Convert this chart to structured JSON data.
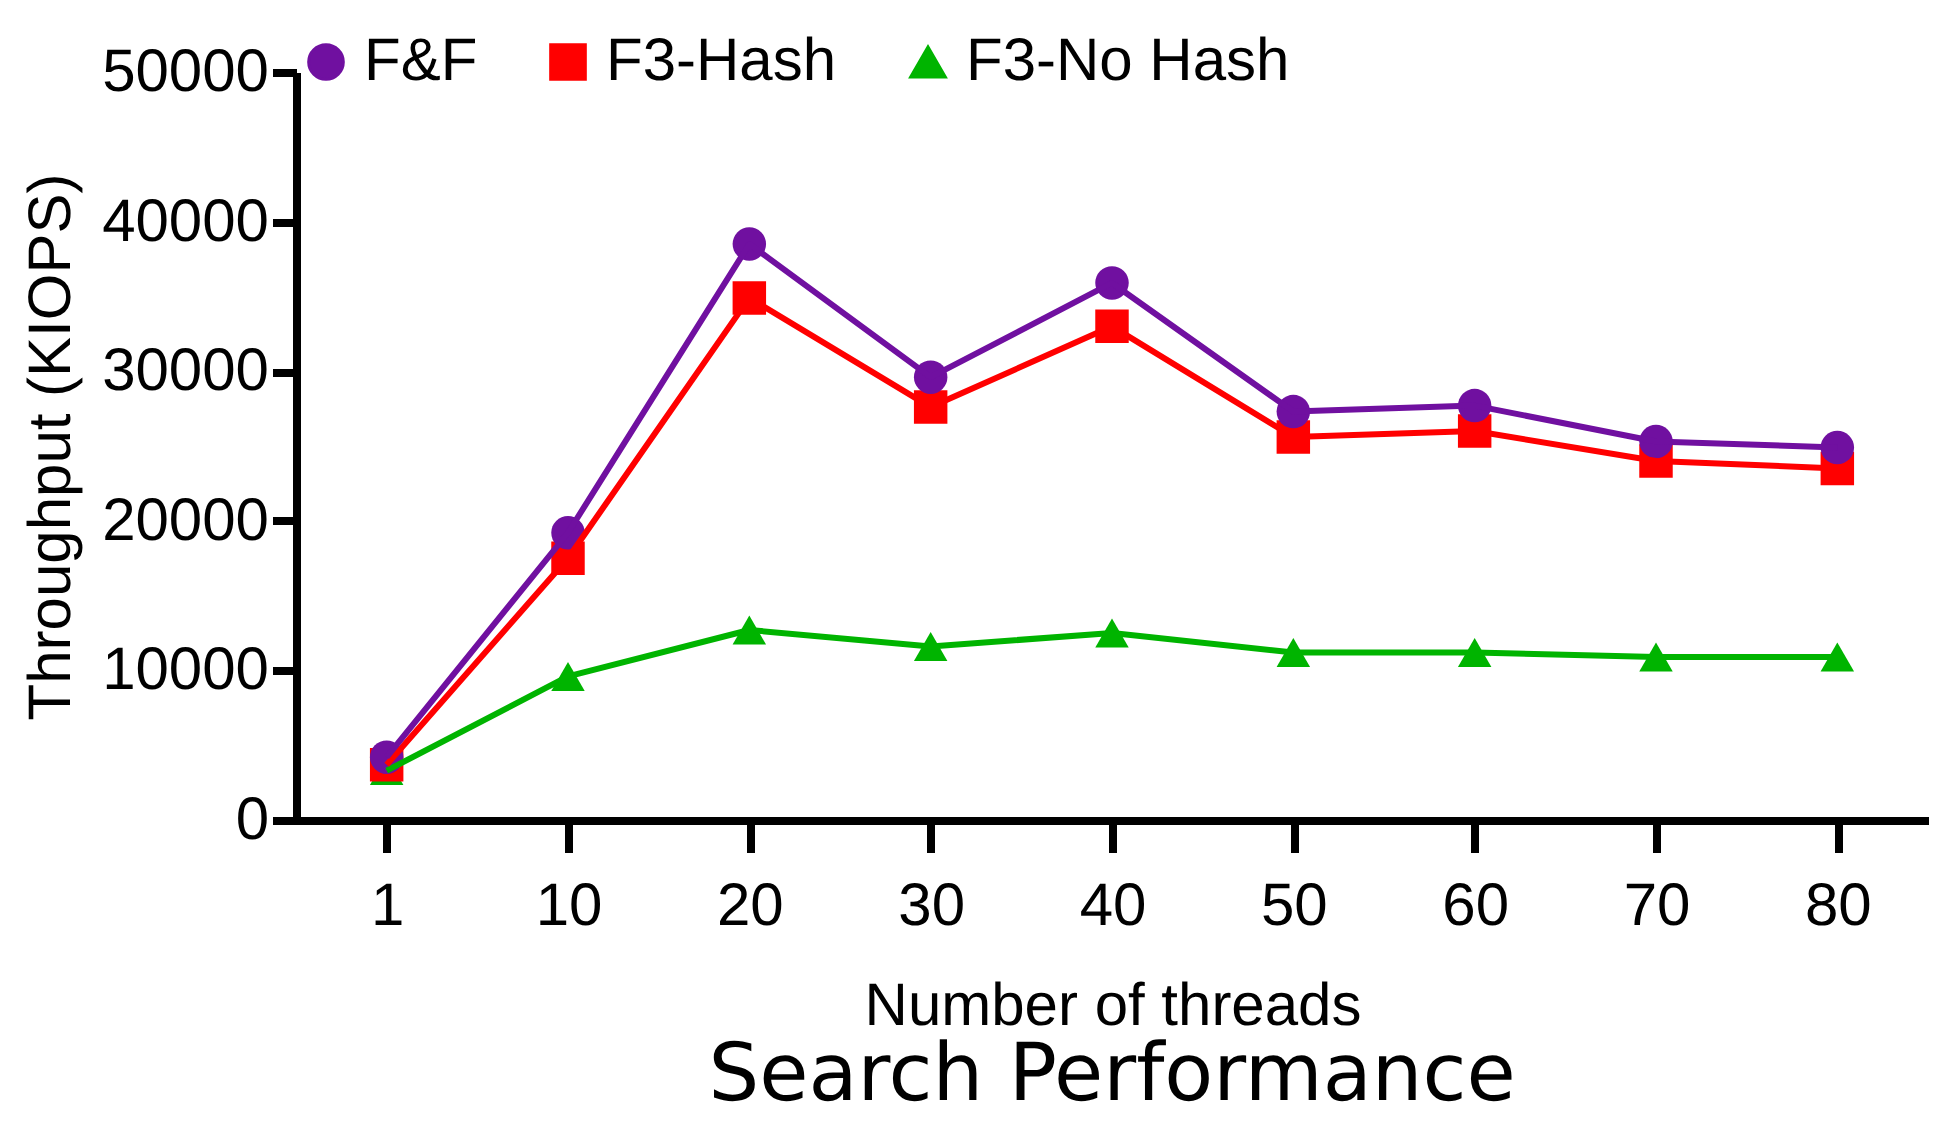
{
  "chart_data": {
    "type": "line",
    "title": "Search Performance",
    "xlabel": "Number of threads",
    "ylabel": "Throughput (KIOPS)",
    "categories": [
      "1",
      "10",
      "20",
      "30",
      "40",
      "50",
      "60",
      "70",
      "80"
    ],
    "series": [
      {
        "name": "F&F",
        "color": "#7010a0",
        "marker": "circle",
        "values": [
          4200,
          19200,
          38500,
          29600,
          35900,
          27300,
          27700,
          25300,
          24900
        ]
      },
      {
        "name": "F3-Hash",
        "color": "#ff0000",
        "marker": "square",
        "values": [
          3700,
          17500,
          34900,
          27600,
          33000,
          25600,
          26000,
          24000,
          23500
        ]
      },
      {
        "name": "F3-No Hash",
        "color": "#00b400",
        "marker": "triangle",
        "values": [
          3300,
          9600,
          12700,
          11600,
          12500,
          11200,
          11200,
          10900,
          10900
        ]
      }
    ],
    "ylim": [
      0,
      50000
    ],
    "yticks": [
      0,
      10000,
      20000,
      30000,
      40000,
      50000
    ],
    "grid": false,
    "legend": "top",
    "line_style": "solid"
  }
}
